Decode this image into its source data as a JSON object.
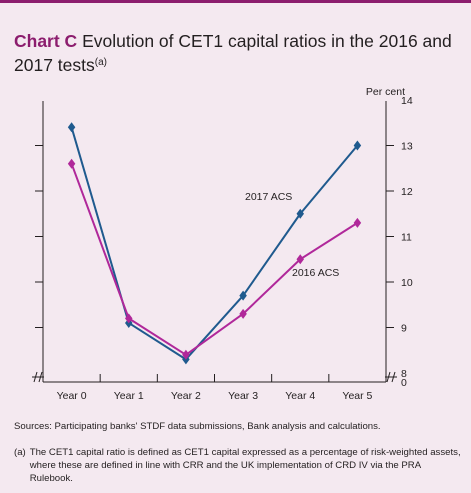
{
  "header": {
    "label": "Chart C",
    "title": "Evolution of CET1 capital ratios in the 2016 and 2017 tests",
    "note_marker": "(a)"
  },
  "chart_data": {
    "type": "line",
    "categories": [
      "Year 0",
      "Year 1",
      "Year 2",
      "Year 3",
      "Year 4",
      "Year 5"
    ],
    "series": [
      {
        "name": "2017 ACS",
        "color": "#1f5a8e",
        "marker": "diamond",
        "values": [
          13.4,
          9.1,
          8.3,
          9.7,
          11.5,
          13.0
        ]
      },
      {
        "name": "2016 ACS",
        "color": "#b0289a",
        "marker": "diamond",
        "values": [
          12.6,
          9.2,
          8.4,
          9.3,
          10.5,
          11.3
        ]
      }
    ],
    "ylabel": "Per cent",
    "ylim": [
      8,
      14
    ],
    "yticks": [
      8,
      9,
      10,
      11,
      12,
      13,
      14
    ],
    "axis_break_label": "0",
    "legend": "inline labels"
  },
  "footer": {
    "sources": "Sources: Participating banks' STDF data submissions, Bank analysis and calculations.",
    "note_marker": "(a)",
    "note_text": "The CET1 capital ratio is defined as CET1 capital expressed as a percentage of risk-weighted assets, where these are defined in line with CRR and the UK implementation of CRD IV via the PRA Rulebook."
  }
}
